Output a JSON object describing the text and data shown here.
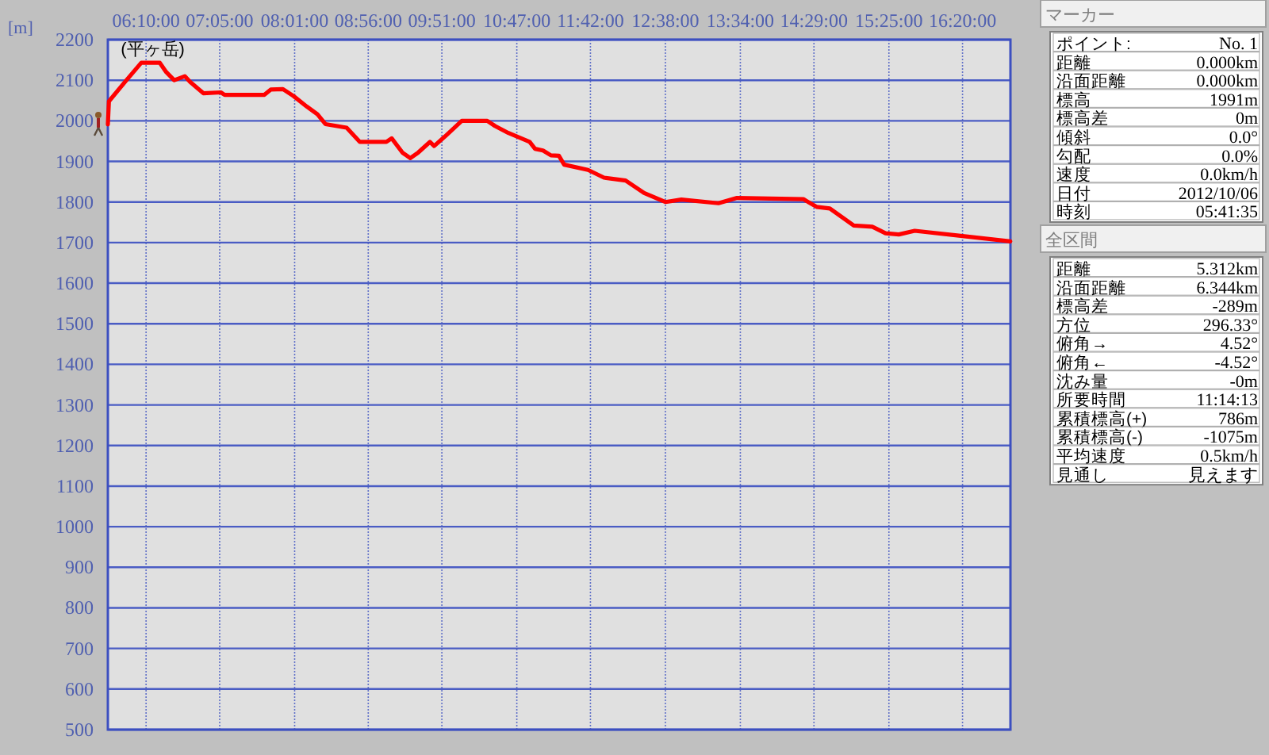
{
  "chart_data": [
    {
      "type": "line",
      "ylabel": "[m]",
      "x": [
        5.691,
        5.704,
        5.922,
        6.107,
        6.338,
        6.418,
        6.517,
        6.649,
        6.715,
        6.88,
        7.098,
        7.145,
        7.64,
        7.719,
        7.871,
        8.003,
        8.169,
        8.301,
        8.4,
        8.664,
        8.829,
        9.159,
        9.225,
        9.358,
        9.457,
        9.556,
        9.701,
        9.754,
        9.886,
        10.098,
        10.415,
        10.514,
        10.679,
        10.943,
        11.01,
        11.109,
        11.208,
        11.307,
        11.373,
        11.67,
        11.869,
        12.138,
        12.369,
        12.633,
        12.832,
        13.294,
        13.525,
        14.351,
        14.516,
        14.681,
        14.979,
        15.21,
        15.375,
        15.54,
        15.738,
        16.333,
        16.928
      ],
      "series": [
        {
          "color": "#ff0000",
          "values": [
            1991,
            2048,
            2100,
            2143,
            2143,
            2120,
            2100,
            2110,
            2096,
            2068,
            2070,
            2064,
            2064,
            2077,
            2078,
            2061,
            2035,
            2016,
            1992,
            1983,
            1948,
            1948,
            1957,
            1922,
            1908,
            1922,
            1948,
            1938,
            1961,
            2000,
            2000,
            1987,
            1970,
            1948,
            1931,
            1927,
            1915,
            1914,
            1892,
            1879,
            1860,
            1853,
            1822,
            1800,
            1806,
            1797,
            1810,
            1807,
            1788,
            1784,
            1742,
            1739,
            1723,
            1720,
            1729,
            1716,
            1703
          ]
        }
      ],
      "xlim": [
        5.691,
        16.93
      ],
      "xticks": [
        {
          "value": 6.1667,
          "label": "06:10:00"
        },
        {
          "value": 7.0833,
          "label": "07:05:00"
        },
        {
          "value": 8.0167,
          "label": "08:01:00"
        },
        {
          "value": 8.9333,
          "label": "08:56:00"
        },
        {
          "value": 9.85,
          "label": "09:51:00"
        },
        {
          "value": 10.7833,
          "label": "10:47:00"
        },
        {
          "value": 11.7,
          "label": "11:42:00"
        },
        {
          "value": 12.6333,
          "label": "12:38:00"
        },
        {
          "value": 13.5667,
          "label": "13:34:00"
        },
        {
          "value": 14.4833,
          "label": "14:29:00"
        },
        {
          "value": 15.4167,
          "label": "15:25:00"
        },
        {
          "value": 16.3333,
          "label": "16:20:00"
        }
      ],
      "ylim": [
        500,
        2200
      ],
      "yticks": [
        500,
        600,
        700,
        800,
        900,
        1000,
        1100,
        1200,
        1300,
        1400,
        1500,
        1600,
        1700,
        1800,
        1900,
        2000,
        2100,
        2200
      ],
      "grid": true,
      "annotations": [
        {
          "text": "(平ヶ岳)",
          "x": 6.25,
          "y": 2143
        }
      ]
    },
    {
      "type": "other",
      "title": "マーカー",
      "annotations": [
        "ポイント:",
        "No. 1",
        "距離",
        "0.000km",
        "沿面距離",
        "0.000km",
        "標高",
        "1991m",
        "標高差",
        "0m",
        "傾斜",
        "0.0°",
        "勾配",
        "0.0%",
        "速度",
        "0.0km/h",
        "日付",
        "2012/10/06",
        "時刻",
        "05:41:35"
      ]
    },
    {
      "type": "other",
      "title": "全区間",
      "annotations": [
        "距離",
        "5.312km",
        "沿面距離",
        "6.344km",
        "標高差",
        "-289m",
        "方位",
        "296.33°",
        "俯角→",
        "4.52°",
        "俯角←",
        "-4.52°",
        "沈み量",
        "-0m",
        "所要時間",
        "11:14:13",
        "累積標高(+)",
        "786m",
        "累積標高(-)",
        "-1075m",
        "平均速度",
        "0.5km/h",
        "見通し",
        "見えます"
      ]
    }
  ]
}
